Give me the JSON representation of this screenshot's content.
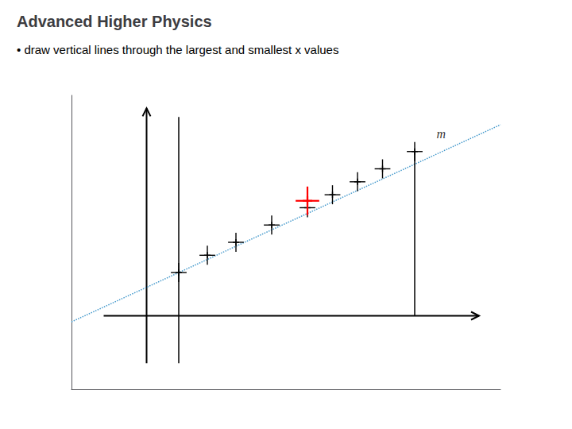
{
  "chart_data": {
    "type": "scatter",
    "title": "Advanced Higher Physics",
    "subtitle": "• draw vertical lines through the largest and smallest x values",
    "xlim": [
      -0.5,
      5.5
    ],
    "ylim": [
      0.2,
      3.6
    ],
    "grid": false,
    "tick_labels": false,
    "series": [
      {
        "type": "line",
        "color": "#000000",
        "line_style": "solid",
        "marker": "arrow",
        "x": [
          -0.05,
          5.2
        ],
        "values": [
          1.05,
          1.05
        ]
      },
      {
        "type": "line",
        "color": "#000000",
        "line_style": "solid",
        "marker": "arrow",
        "x": [
          0.55,
          0.55
        ],
        "values": [
          0.5,
          3.45
        ]
      },
      {
        "type": "line",
        "color": "#4499CC",
        "line_style": "dotted",
        "x": [
          -0.5,
          5.5
        ],
        "values": [
          0.98,
          3.26
        ]
      },
      {
        "type": "line",
        "color": "#000000",
        "line_style": "solid",
        "x": [
          1.0,
          1.0
        ],
        "values": [
          0.5,
          3.35
        ]
      },
      {
        "type": "line",
        "color": "#000000",
        "line_style": "solid",
        "x": [
          4.3,
          4.3
        ],
        "values": [
          1.05,
          2.954
        ]
      },
      {
        "type": "scatter",
        "color": "#000000",
        "marker": "plus",
        "x": [
          1.0,
          1.4,
          1.8,
          2.3,
          2.8,
          3.15,
          3.5,
          3.85,
          4.3
        ],
        "values": [
          1.55,
          1.75,
          1.9,
          2.1,
          2.3,
          2.45,
          2.6,
          2.75,
          2.95
        ],
        "xerr": [
          0.11,
          0.11,
          0.11,
          0.11,
          0.11,
          0.11,
          0.11,
          0.11,
          0.11
        ],
        "yerr": [
          0.11,
          0.11,
          0.11,
          0.11,
          0.11,
          0.11,
          0.11,
          0.11,
          0.11
        ]
      },
      {
        "type": "scatter",
        "color": "#ff0000",
        "marker": "plus",
        "x": [
          2.8
        ],
        "values": [
          2.38
        ],
        "xerr": [
          0.165
        ],
        "yerr": [
          0.165
        ]
      }
    ],
    "annotations": [
      {
        "text": "m",
        "x": 4.55,
        "y": 3.15
      }
    ]
  }
}
